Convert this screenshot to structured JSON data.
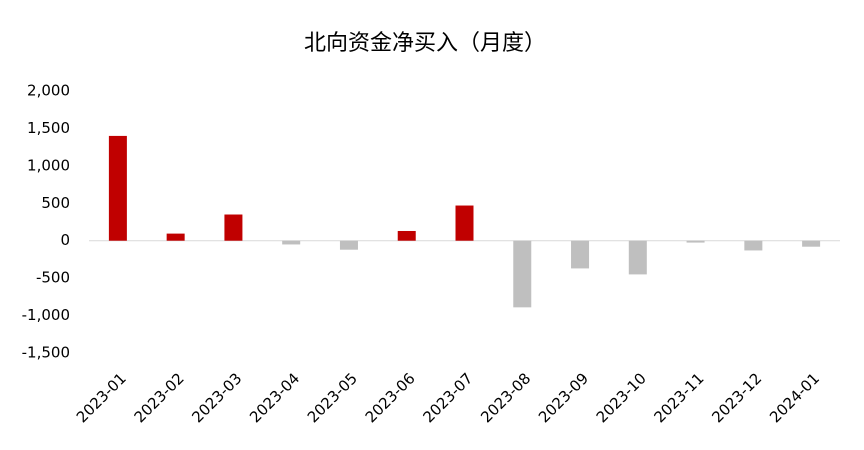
{
  "chart_data": {
    "type": "bar",
    "title": "北向资金净买入（月度）",
    "categories": [
      "2023-01",
      "2023-02",
      "2023-03",
      "2023-04",
      "2023-05",
      "2023-06",
      "2023-07",
      "2023-08",
      "2023-09",
      "2023-10",
      "2023-11",
      "2023-12",
      "2024-01"
    ],
    "values": [
      1400,
      95,
      350,
      -50,
      -120,
      130,
      470,
      -890,
      -370,
      -450,
      -25,
      -130,
      -80
    ],
    "positive_color": "#c00000",
    "negative_color": "#bfbfbf",
    "ylim": [
      -1500,
      2000
    ],
    "yticks": [
      {
        "value": 2000,
        "label": "2,000"
      },
      {
        "value": 1500,
        "label": "1,500"
      },
      {
        "value": 1000,
        "label": "1,000"
      },
      500,
      0,
      {
        "value": -500,
        "label": "-500"
      },
      {
        "value": -1000,
        "label": "-1,000"
      },
      {
        "value": -1500,
        "label": "-1,500"
      }
    ],
    "grid": false
  }
}
